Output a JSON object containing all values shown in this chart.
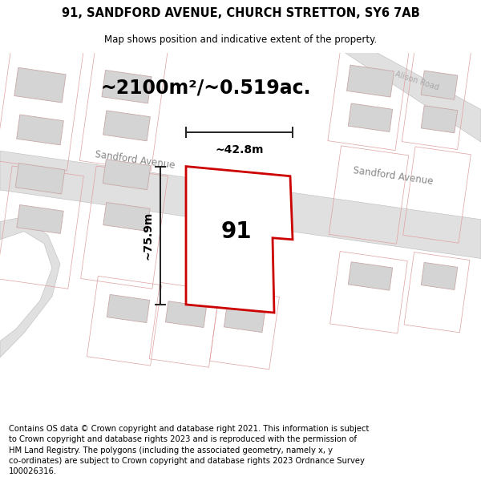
{
  "title_line1": "91, SANDFORD AVENUE, CHURCH STRETTON, SY6 7AB",
  "title_line2": "Map shows position and indicative extent of the property.",
  "area_label": "~2100m²/~0.519ac.",
  "height_label": "~75.9m",
  "width_label": "~42.8m",
  "number_label": "91",
  "street_label1": "Sandford Avenue",
  "street_label2": "Sandford Avenue",
  "road_label": "Alison Road",
  "footer_text": "Contains OS data © Crown copyright and database right 2021. This information is subject\nto Crown copyright and database rights 2023 and is reproduced with the permission of\nHM Land Registry. The polygons (including the associated geometry, namely x, y\nco-ordinates) are subject to Crown copyright and database rights 2023 Ordnance Survey\n100026316.",
  "map_bg": "#faf8f8",
  "property_fill": "#ffffff",
  "property_edge": "#cc0000",
  "road_fill": "#e0e0e0",
  "road_stroke": "#bbbbbb",
  "building_fill": "#d4d4d4",
  "building_stroke": "#c8a8a8",
  "plot_stroke": "#e8b0b0",
  "dim_color": "#222222",
  "title_fontsize": 10.5,
  "subtitle_fontsize": 8.5,
  "area_fontsize": 17,
  "label_fontsize": 10,
  "footer_fontsize": 7.2
}
